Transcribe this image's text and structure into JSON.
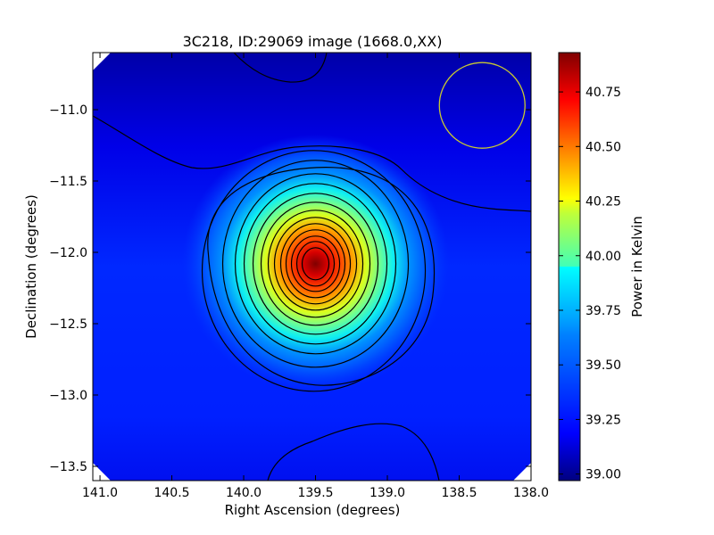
{
  "chart_data": {
    "type": "heatmap",
    "title": "3C218, ID:29069 image (1668.0,XX)",
    "xlabel": "Right Ascension (degrees)",
    "ylabel": "Declination (degrees)",
    "xlim": [
      141.05,
      138.0
    ],
    "ylim": [
      -13.6,
      -10.6
    ],
    "x_ticks": [
      141.0,
      140.5,
      140.0,
      139.5,
      139.0,
      138.5,
      138.0
    ],
    "x_tick_labels": [
      "141.0",
      "140.5",
      "140.0",
      "139.5",
      "139.0",
      "138.5",
      "138.0"
    ],
    "y_ticks": [
      -11.0,
      -11.5,
      -12.0,
      -12.5,
      -13.0,
      -13.5
    ],
    "y_tick_labels": [
      "−11.0",
      "−11.5",
      "−12.0",
      "−12.5",
      "−13.0",
      "−13.5"
    ],
    "colorbar": {
      "label": "Power in Kelvin",
      "range": [
        38.97,
        40.93
      ],
      "ticks": [
        39.0,
        39.25,
        39.5,
        39.75,
        40.0,
        40.25,
        40.5,
        40.75
      ],
      "tick_labels": [
        "39.00",
        "39.25",
        "39.50",
        "39.75",
        "40.00",
        "40.25",
        "40.50",
        "40.75"
      ],
      "colormap": "jet"
    },
    "peak": {
      "ra": 139.5,
      "dec": -12.08,
      "value": 40.93
    },
    "contours": {
      "color": "#000000",
      "levels": [
        39.1,
        39.3,
        39.42,
        39.5,
        39.58,
        39.66,
        39.74,
        39.82,
        39.9,
        39.98,
        40.06,
        40.14,
        40.22,
        40.32,
        40.45,
        40.62
      ]
    },
    "beam_circle": {
      "ra": 138.34,
      "dec": -10.97,
      "radius_deg": 0.3,
      "color": "#c8c832"
    },
    "grid": false
  }
}
